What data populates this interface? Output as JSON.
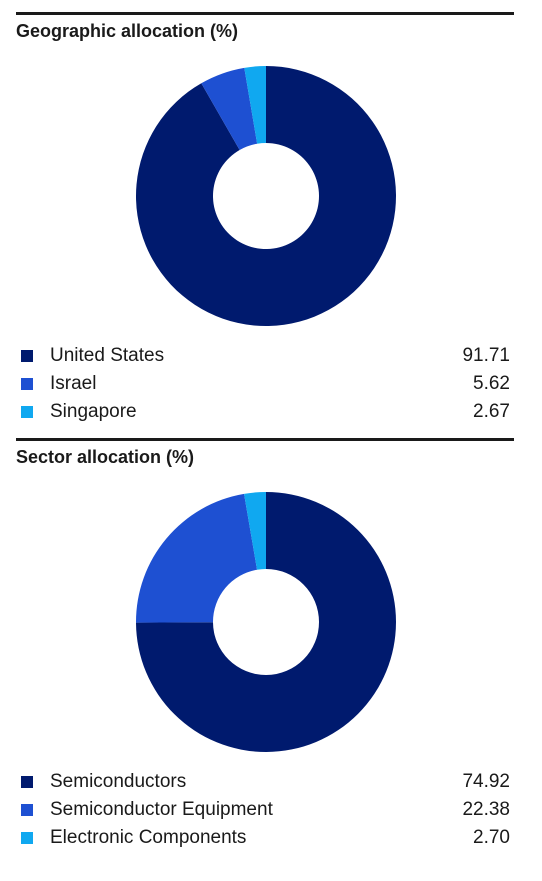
{
  "colors": [
    "#001a6e",
    "#1e50d2",
    "#10a8f0"
  ],
  "chart_data": [
    {
      "type": "pie",
      "title": "Geographic allocation (%)",
      "categories": [
        "United States",
        "Israel",
        "Singapore"
      ],
      "values": [
        91.71,
        5.62,
        2.67
      ],
      "value_labels": [
        "91.71",
        "5.62",
        "2.67"
      ],
      "legend": "bottom"
    },
    {
      "type": "pie",
      "title": "Sector allocation (%)",
      "categories": [
        "Semiconductors",
        "Semiconductor Equipment",
        "Electronic Components"
      ],
      "values": [
        74.92,
        22.38,
        2.7
      ],
      "value_labels": [
        "74.92",
        "22.38",
        "2.70"
      ],
      "legend": "bottom"
    }
  ]
}
